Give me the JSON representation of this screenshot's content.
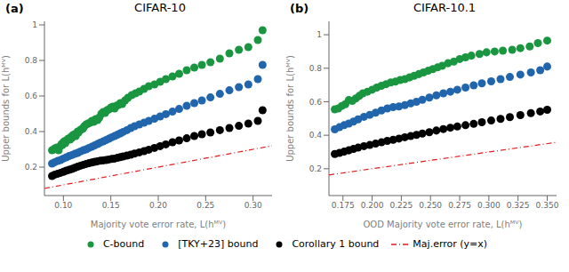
{
  "chart_data": [
    {
      "type": "scatter",
      "title": "CIFAR-10",
      "x_label": "Majority vote error rate, L(hᴹⱽ)",
      "y_label": "Upper bounds for L(hᴹⱽ)",
      "annotations": [
        "(a)"
      ],
      "xlim": [
        0.08,
        0.32
      ],
      "ylim": [
        0.04,
        1.02
      ],
      "xticks": [
        {
          "value": 0.1,
          "label": "0.10"
        },
        0.15,
        {
          "value": 0.2,
          "label": "0.20"
        },
        0.25,
        {
          "value": 0.3,
          "label": "0.30"
        }
      ],
      "yticks": [
        0.2,
        0.4,
        0.6,
        0.8,
        1
      ],
      "grid": false,
      "legend": "bottom",
      "series": [
        {
          "name": "C-bound",
          "type": "scatter",
          "marker": "circle",
          "color": "#1a9641",
          "x": [
            0.088,
            0.09,
            0.091,
            0.093,
            0.095,
            0.097,
            0.098,
            0.099,
            0.1,
            0.101,
            0.102,
            0.103,
            0.105,
            0.107,
            0.108,
            0.109,
            0.11,
            0.112,
            0.113,
            0.114,
            0.115,
            0.116,
            0.118,
            0.12,
            0.121,
            0.122,
            0.124,
            0.126,
            0.128,
            0.13,
            0.132,
            0.134,
            0.136,
            0.138,
            0.14,
            0.142,
            0.144,
            0.146,
            0.148,
            0.15,
            0.152,
            0.154,
            0.156,
            0.158,
            0.16,
            0.162,
            0.165,
            0.168,
            0.172,
            0.176,
            0.18,
            0.185,
            0.19,
            0.196,
            0.202,
            0.208,
            0.215,
            0.222,
            0.23,
            0.238,
            0.246,
            0.255,
            0.265,
            0.275,
            0.285,
            0.295,
            0.305,
            0.31
          ],
          "values": [
            0.295,
            0.3,
            0.305,
            0.31,
            0.295,
            0.32,
            0.33,
            0.325,
            0.34,
            0.345,
            0.335,
            0.35,
            0.36,
            0.355,
            0.37,
            0.365,
            0.38,
            0.385,
            0.375,
            0.39,
            0.4,
            0.395,
            0.41,
            0.415,
            0.42,
            0.43,
            0.44,
            0.445,
            0.45,
            0.46,
            0.455,
            0.47,
            0.465,
            0.48,
            0.5,
            0.51,
            0.505,
            0.52,
            0.525,
            0.535,
            0.54,
            0.53,
            0.545,
            0.55,
            0.56,
            0.555,
            0.575,
            0.59,
            0.605,
            0.615,
            0.625,
            0.64,
            0.655,
            0.665,
            0.68,
            0.695,
            0.71,
            0.725,
            0.745,
            0.76,
            0.775,
            0.79,
            0.81,
            0.84,
            0.86,
            0.875,
            0.915,
            0.97
          ]
        },
        {
          "name": "[TKY+23] bound",
          "type": "scatter",
          "marker": "circle",
          "color": "#2166ac",
          "x": [
            0.088,
            0.091,
            0.094,
            0.097,
            0.1,
            0.103,
            0.106,
            0.109,
            0.112,
            0.115,
            0.118,
            0.121,
            0.124,
            0.127,
            0.13,
            0.133,
            0.136,
            0.139,
            0.142,
            0.145,
            0.148,
            0.151,
            0.154,
            0.157,
            0.16,
            0.163,
            0.167,
            0.171,
            0.175,
            0.18,
            0.185,
            0.19,
            0.196,
            0.202,
            0.208,
            0.215,
            0.222,
            0.23,
            0.238,
            0.246,
            0.255,
            0.265,
            0.275,
            0.285,
            0.295,
            0.305,
            0.31
          ],
          "values": [
            0.22,
            0.228,
            0.235,
            0.24,
            0.248,
            0.255,
            0.262,
            0.268,
            0.275,
            0.28,
            0.288,
            0.295,
            0.3,
            0.308,
            0.315,
            0.322,
            0.33,
            0.338,
            0.345,
            0.352,
            0.36,
            0.368,
            0.375,
            0.382,
            0.39,
            0.398,
            0.408,
            0.42,
            0.43,
            0.44,
            0.45,
            0.46,
            0.472,
            0.485,
            0.498,
            0.512,
            0.527,
            0.545,
            0.56,
            0.575,
            0.592,
            0.612,
            0.632,
            0.65,
            0.665,
            0.695,
            0.775
          ]
        },
        {
          "name": "Corollary 1 bound",
          "type": "scatter",
          "marker": "circle",
          "color": "#000000",
          "x": [
            0.088,
            0.091,
            0.094,
            0.097,
            0.1,
            0.103,
            0.106,
            0.109,
            0.112,
            0.115,
            0.118,
            0.121,
            0.124,
            0.127,
            0.13,
            0.133,
            0.136,
            0.139,
            0.142,
            0.145,
            0.148,
            0.151,
            0.154,
            0.157,
            0.16,
            0.163,
            0.167,
            0.171,
            0.175,
            0.18,
            0.185,
            0.19,
            0.196,
            0.202,
            0.208,
            0.215,
            0.222,
            0.23,
            0.238,
            0.246,
            0.255,
            0.265,
            0.275,
            0.285,
            0.295,
            0.305,
            0.31
          ],
          "values": [
            0.15,
            0.158,
            0.163,
            0.168,
            0.174,
            0.18,
            0.185,
            0.19,
            0.196,
            0.202,
            0.208,
            0.213,
            0.218,
            0.222,
            0.226,
            0.23,
            0.233,
            0.236,
            0.238,
            0.24,
            0.243,
            0.246,
            0.248,
            0.252,
            0.256,
            0.26,
            0.265,
            0.27,
            0.276,
            0.283,
            0.29,
            0.298,
            0.308,
            0.318,
            0.328,
            0.34,
            0.35,
            0.362,
            0.375,
            0.385,
            0.395,
            0.408,
            0.42,
            0.432,
            0.445,
            0.46,
            0.52
          ]
        },
        {
          "name": "Maj.error (y=x)",
          "type": "line",
          "line_style": "dashdot",
          "color": "#e31a1c",
          "x": [
            0.08,
            0.32
          ],
          "values": [
            0.08,
            0.32
          ]
        }
      ]
    },
    {
      "type": "scatter",
      "title": "CIFAR-10.1",
      "x_label": "OOD Majority vote error rate, L(hᴹⱽ)",
      "y_label": "Upper bounds for L(hᴹⱽ)",
      "annotations": [
        "(b)"
      ],
      "xlim": [
        0.163,
        0.358
      ],
      "ylim": [
        0.04,
        1.08
      ],
      "xticks": [
        0.175,
        {
          "value": 0.2,
          "label": "0.200"
        },
        0.225,
        {
          "value": 0.25,
          "label": "0.250"
        },
        0.275,
        {
          "value": 0.3,
          "label": "0.300"
        },
        0.325,
        {
          "value": 0.35,
          "label": "0.350"
        }
      ],
      "yticks": [
        0.2,
        0.4,
        0.6,
        0.8,
        1
      ],
      "grid": false,
      "legend": "bottom",
      "series": [
        {
          "name": "C-bound",
          "type": "scatter",
          "marker": "circle",
          "color": "#1a9641",
          "x": [
            0.168,
            0.171,
            0.174,
            0.177,
            0.18,
            0.183,
            0.186,
            0.189,
            0.192,
            0.196,
            0.2,
            0.204,
            0.208,
            0.212,
            0.216,
            0.22,
            0.224,
            0.228,
            0.232,
            0.236,
            0.24,
            0.244,
            0.248,
            0.252,
            0.256,
            0.26,
            0.265,
            0.27,
            0.275,
            0.28,
            0.285,
            0.292,
            0.298,
            0.305,
            0.312,
            0.32,
            0.327,
            0.335,
            0.342,
            0.35
          ],
          "values": [
            0.555,
            0.56,
            0.575,
            0.585,
            0.61,
            0.605,
            0.62,
            0.635,
            0.65,
            0.66,
            0.672,
            0.685,
            0.695,
            0.705,
            0.715,
            0.72,
            0.73,
            0.735,
            0.745,
            0.755,
            0.765,
            0.775,
            0.785,
            0.795,
            0.805,
            0.815,
            0.83,
            0.84,
            0.855,
            0.865,
            0.875,
            0.885,
            0.895,
            0.9,
            0.905,
            0.91,
            0.92,
            0.93,
            0.95,
            0.965
          ]
        },
        {
          "name": "[TKY+23] bound",
          "type": "scatter",
          "marker": "circle",
          "color": "#2166ac",
          "x": [
            0.168,
            0.172,
            0.176,
            0.18,
            0.184,
            0.188,
            0.193,
            0.198,
            0.203,
            0.208,
            0.213,
            0.218,
            0.223,
            0.228,
            0.233,
            0.238,
            0.243,
            0.249,
            0.255,
            0.261,
            0.267,
            0.273,
            0.28,
            0.287,
            0.294,
            0.302,
            0.31,
            0.318,
            0.327,
            0.336,
            0.344,
            0.35
          ],
          "values": [
            0.435,
            0.448,
            0.46,
            0.47,
            0.482,
            0.495,
            0.51,
            0.522,
            0.535,
            0.548,
            0.56,
            0.568,
            0.572,
            0.58,
            0.59,
            0.6,
            0.612,
            0.625,
            0.638,
            0.65,
            0.66,
            0.672,
            0.685,
            0.698,
            0.71,
            0.722,
            0.735,
            0.748,
            0.762,
            0.775,
            0.788,
            0.81
          ]
        },
        {
          "name": "Corollary 1 bound",
          "type": "scatter",
          "marker": "circle",
          "color": "#000000",
          "x": [
            0.168,
            0.172,
            0.176,
            0.18,
            0.184,
            0.188,
            0.193,
            0.198,
            0.203,
            0.208,
            0.213,
            0.218,
            0.223,
            0.228,
            0.233,
            0.238,
            0.243,
            0.249,
            0.255,
            0.261,
            0.267,
            0.273,
            0.28,
            0.287,
            0.294,
            0.302,
            0.31,
            0.318,
            0.327,
            0.336,
            0.344,
            0.35
          ],
          "values": [
            0.288,
            0.295,
            0.302,
            0.31,
            0.318,
            0.326,
            0.335,
            0.342,
            0.35,
            0.358,
            0.366,
            0.373,
            0.38,
            0.388,
            0.395,
            0.402,
            0.41,
            0.418,
            0.428,
            0.437,
            0.445,
            0.452,
            0.46,
            0.468,
            0.478,
            0.488,
            0.498,
            0.508,
            0.52,
            0.532,
            0.542,
            0.552
          ]
        },
        {
          "name": "Maj.error (y=x)",
          "type": "line",
          "line_style": "dashdot",
          "color": "#e31a1c",
          "x": [
            0.163,
            0.358
          ],
          "values": [
            0.163,
            0.358
          ]
        }
      ]
    }
  ]
}
